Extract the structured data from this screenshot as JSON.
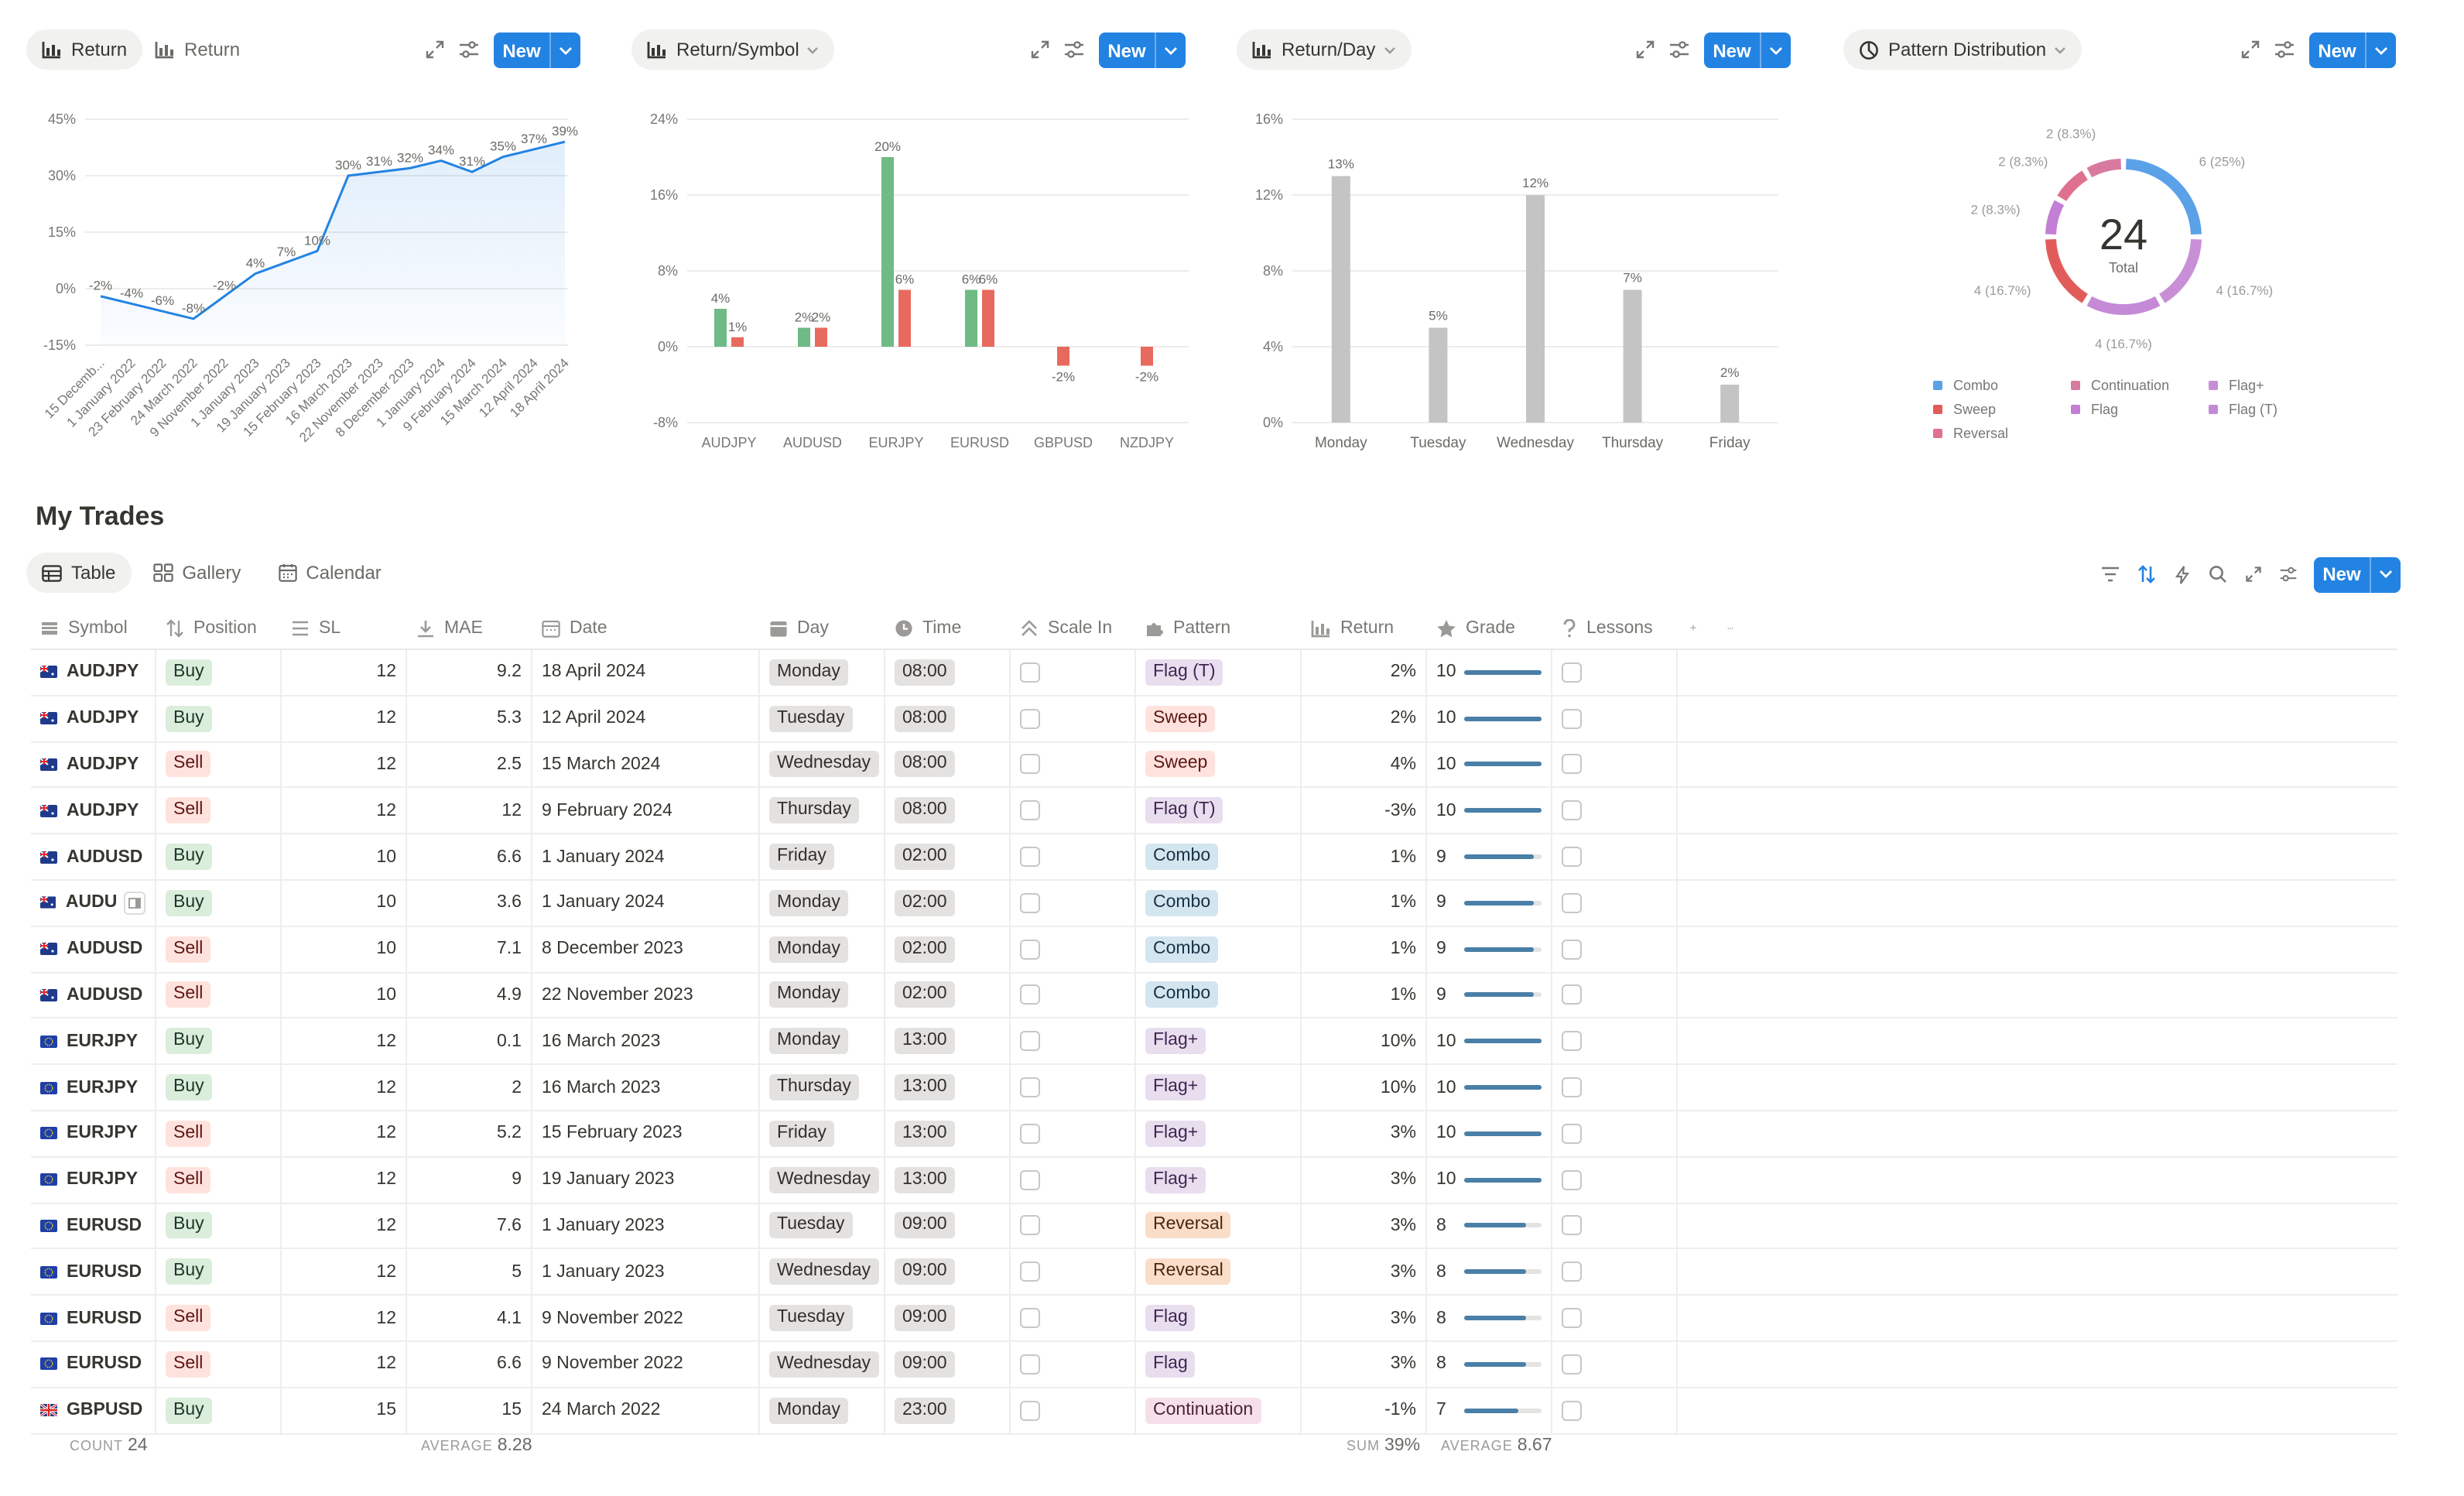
{
  "charts": {
    "return": {
      "tab_active": "Return",
      "tab_inactive": "Return",
      "new_label": "New"
    },
    "symbol": {
      "tab": "Return/Symbol",
      "new_label": "New"
    },
    "day": {
      "tab": "Return/Day",
      "new_label": "New"
    },
    "pattern": {
      "tab": "Pattern Distribution",
      "new_label": "New"
    }
  },
  "chart_data": [
    {
      "type": "area",
      "title": "Return",
      "x": [
        "15 Decemb...",
        "1 January 2022",
        "23 February 2022",
        "24 March 2022",
        "9 November 2022",
        "1 January 2023",
        "19 January 2023",
        "15 February 2023",
        "16 March 2023",
        "22 November 2023",
        "8 December 2023",
        "1 January 2024",
        "9 February 2024",
        "15 March 2024",
        "12 April 2024",
        "18 April 2024"
      ],
      "values": [
        -2,
        -4,
        -6,
        -8,
        -2,
        4,
        7,
        10,
        30,
        31,
        32,
        34,
        31,
        35,
        37,
        39
      ],
      "value_labels": [
        "-2%",
        "-4%",
        "-6%",
        "-8%",
        "-2%",
        "4%",
        "7%",
        "10%",
        "30%",
        "31%",
        "32%",
        "34%",
        "31%",
        "35%",
        "37%",
        "39%"
      ],
      "yticks": [
        "45%",
        "30%",
        "15%",
        "0%",
        "-15%"
      ],
      "ylim": [
        -15,
        45
      ],
      "color": "#2383e2"
    },
    {
      "type": "bar",
      "title": "Return/Symbol",
      "categories": [
        "AUDJPY",
        "AUDUSD",
        "EURJPY",
        "EURUSD",
        "GBPUSD",
        "NZDJPY"
      ],
      "series": [
        {
          "values": [
            4,
            2,
            20,
            6,
            null,
            null
          ],
          "color": "#6fba85"
        },
        {
          "values": [
            1,
            2,
            6,
            6,
            -2,
            -2
          ],
          "color": "#e8695e"
        }
      ],
      "value_labels": [
        [
          "4%",
          "2%",
          "20%",
          "6%",
          "",
          ""
        ],
        [
          "1%",
          "2%",
          "6%",
          "6%",
          "-2%",
          "-2%"
        ]
      ],
      "neg_first": [
        false,
        false,
        false,
        false,
        true,
        true
      ],
      "yticks": [
        "24%",
        "16%",
        "8%",
        "0%",
        "-8%"
      ],
      "ylim": [
        -8,
        24
      ]
    },
    {
      "type": "bar",
      "title": "Return/Day",
      "categories": [
        "Monday",
        "Tuesday",
        "Wednesday",
        "Thursday",
        "Friday"
      ],
      "values": [
        13,
        5,
        12,
        7,
        2
      ],
      "value_labels": [
        "13%",
        "5%",
        "12%",
        "7%",
        "2%"
      ],
      "yticks": [
        "16%",
        "12%",
        "8%",
        "4%",
        "0%"
      ],
      "ylim": [
        0,
        16
      ],
      "color": "#c4c4c4"
    },
    {
      "type": "pie",
      "title": "Pattern Distribution",
      "total": "24",
      "total_label": "Total",
      "slices": [
        {
          "name": "Combo",
          "value": 6,
          "label": "6 (25%)",
          "color": "#5ba1e8"
        },
        {
          "name": "Flag+",
          "value": 4,
          "label": "4 (16.7%)",
          "color": "#c98fd6"
        },
        {
          "name": "Flag (T)",
          "value": 4,
          "label": "4 (16.7%)",
          "color": "#c48ad6"
        },
        {
          "name": "Sweep",
          "value": 4,
          "label": "4 (16.7%)",
          "color": "#e25b5b"
        },
        {
          "name": "Flag",
          "value": 2,
          "label": "2 (8.3%)",
          "color": "#c37ed6"
        },
        {
          "name": "Reversal",
          "value": 2,
          "label": "2 (8.3%)",
          "color": "#e0708f"
        },
        {
          "name": "Continuation",
          "value": 2,
          "label": "2 (8.3%)",
          "color": "#d87aa0"
        }
      ],
      "legend": [
        {
          "name": "Combo",
          "color": "#5ba1e8"
        },
        {
          "name": "Continuation",
          "color": "#d87aa0"
        },
        {
          "name": "Flag+",
          "color": "#c98fd6"
        },
        {
          "name": "Sweep",
          "color": "#e25b5b"
        },
        {
          "name": "Flag",
          "color": "#c37ed6"
        },
        {
          "name": "Flag (T)",
          "color": "#c48ad6"
        },
        {
          "name": "Reversal",
          "color": "#e0708f"
        }
      ]
    }
  ],
  "section": {
    "title": "My Trades",
    "views": [
      "Table",
      "Gallery",
      "Calendar"
    ],
    "new_label": "New"
  },
  "table": {
    "headers": [
      "Symbol",
      "Position",
      "SL",
      "MAE",
      "Date",
      "Day",
      "Time",
      "Scale In",
      "Pattern",
      "Return",
      "Grade",
      "Lessons"
    ],
    "rows": [
      {
        "symbol": "AUDJPY",
        "flag": "au",
        "position": "Buy",
        "sl": "12",
        "mae": "9.2",
        "date": "18 April 2024",
        "day": "Monday",
        "time": "08:00",
        "pattern": "Flag (T)",
        "pcls": "flagt",
        "ret": "2%",
        "grade": "10",
        "gfill": 1.0
      },
      {
        "symbol": "AUDJPY",
        "flag": "au",
        "position": "Buy",
        "sl": "12",
        "mae": "5.3",
        "date": "12 April 2024",
        "day": "Tuesday",
        "time": "08:00",
        "pattern": "Sweep",
        "pcls": "sweep",
        "ret": "2%",
        "grade": "10",
        "gfill": 1.0
      },
      {
        "symbol": "AUDJPY",
        "flag": "au",
        "position": "Sell",
        "sl": "12",
        "mae": "2.5",
        "date": "15 March 2024",
        "day": "Wednesday",
        "time": "08:00",
        "pattern": "Sweep",
        "pcls": "sweep",
        "ret": "4%",
        "grade": "10",
        "gfill": 1.0
      },
      {
        "symbol": "AUDJPY",
        "flag": "au",
        "position": "Sell",
        "sl": "12",
        "mae": "12",
        "date": "9 February 2024",
        "day": "Thursday",
        "time": "08:00",
        "pattern": "Flag (T)",
        "pcls": "flagt",
        "ret": "-3%",
        "grade": "10",
        "gfill": 1.0
      },
      {
        "symbol": "AUDUSD",
        "flag": "au",
        "position": "Buy",
        "sl": "10",
        "mae": "6.6",
        "date": "1 January 2024",
        "day": "Friday",
        "time": "02:00",
        "pattern": "Combo",
        "pcls": "combo",
        "ret": "1%",
        "grade": "9",
        "gfill": 0.9
      },
      {
        "symbol": "AUDU",
        "flag": "au",
        "position": "Buy",
        "sl": "10",
        "mae": "3.6",
        "date": "1 January 2024",
        "day": "Monday",
        "time": "02:00",
        "pattern": "Combo",
        "pcls": "combo",
        "ret": "1%",
        "grade": "9",
        "gfill": 0.9,
        "hover": true
      },
      {
        "symbol": "AUDUSD",
        "flag": "au",
        "position": "Sell",
        "sl": "10",
        "mae": "7.1",
        "date": "8 December 2023",
        "day": "Monday",
        "time": "02:00",
        "pattern": "Combo",
        "pcls": "combo",
        "ret": "1%",
        "grade": "9",
        "gfill": 0.9
      },
      {
        "symbol": "AUDUSD",
        "flag": "au",
        "position": "Sell",
        "sl": "10",
        "mae": "4.9",
        "date": "22 November 2023",
        "day": "Monday",
        "time": "02:00",
        "pattern": "Combo",
        "pcls": "combo",
        "ret": "1%",
        "grade": "9",
        "gfill": 0.9
      },
      {
        "symbol": "EURJPY",
        "flag": "eu",
        "position": "Buy",
        "sl": "12",
        "mae": "0.1",
        "date": "16 March 2023",
        "day": "Monday",
        "time": "13:00",
        "pattern": "Flag+",
        "pcls": "flagp",
        "ret": "10%",
        "grade": "10",
        "gfill": 1.0
      },
      {
        "symbol": "EURJPY",
        "flag": "eu",
        "position": "Buy",
        "sl": "12",
        "mae": "2",
        "date": "16 March 2023",
        "day": "Thursday",
        "time": "13:00",
        "pattern": "Flag+",
        "pcls": "flagp",
        "ret": "10%",
        "grade": "10",
        "gfill": 1.0
      },
      {
        "symbol": "EURJPY",
        "flag": "eu",
        "position": "Sell",
        "sl": "12",
        "mae": "5.2",
        "date": "15 February 2023",
        "day": "Friday",
        "time": "13:00",
        "pattern": "Flag+",
        "pcls": "flagp",
        "ret": "3%",
        "grade": "10",
        "gfill": 1.0
      },
      {
        "symbol": "EURJPY",
        "flag": "eu",
        "position": "Sell",
        "sl": "12",
        "mae": "9",
        "date": "19 January 2023",
        "day": "Wednesday",
        "time": "13:00",
        "pattern": "Flag+",
        "pcls": "flagp",
        "ret": "3%",
        "grade": "10",
        "gfill": 1.0
      },
      {
        "symbol": "EURUSD",
        "flag": "eu",
        "position": "Buy",
        "sl": "12",
        "mae": "7.6",
        "date": "1 January 2023",
        "day": "Tuesday",
        "time": "09:00",
        "pattern": "Reversal",
        "pcls": "rev",
        "ret": "3%",
        "grade": "8",
        "gfill": 0.8
      },
      {
        "symbol": "EURUSD",
        "flag": "eu",
        "position": "Buy",
        "sl": "12",
        "mae": "5",
        "date": "1 January 2023",
        "day": "Wednesday",
        "time": "09:00",
        "pattern": "Reversal",
        "pcls": "rev",
        "ret": "3%",
        "grade": "8",
        "gfill": 0.8
      },
      {
        "symbol": "EURUSD",
        "flag": "eu",
        "position": "Sell",
        "sl": "12",
        "mae": "4.1",
        "date": "9 November 2022",
        "day": "Tuesday",
        "time": "09:00",
        "pattern": "Flag",
        "pcls": "flag",
        "ret": "3%",
        "grade": "8",
        "gfill": 0.8
      },
      {
        "symbol": "EURUSD",
        "flag": "eu",
        "position": "Sell",
        "sl": "12",
        "mae": "6.6",
        "date": "9 November 2022",
        "day": "Wednesday",
        "time": "09:00",
        "pattern": "Flag",
        "pcls": "flag",
        "ret": "3%",
        "grade": "8",
        "gfill": 0.8
      },
      {
        "symbol": "GBPUSD",
        "flag": "gb",
        "position": "Buy",
        "sl": "15",
        "mae": "15",
        "date": "24 March 2022",
        "day": "Monday",
        "time": "23:00",
        "pattern": "Continuation",
        "pcls": "cont",
        "ret": "-1%",
        "grade": "7",
        "gfill": 0.7
      }
    ],
    "footer": {
      "count_label": "COUNT",
      "count": "24",
      "avg_label": "AVERAGE",
      "avg_mae": "8.28",
      "sum_label": "SUM",
      "sum_return": "39%",
      "avg2_label": "AVERAGE",
      "avg_grade": "8.67"
    }
  }
}
